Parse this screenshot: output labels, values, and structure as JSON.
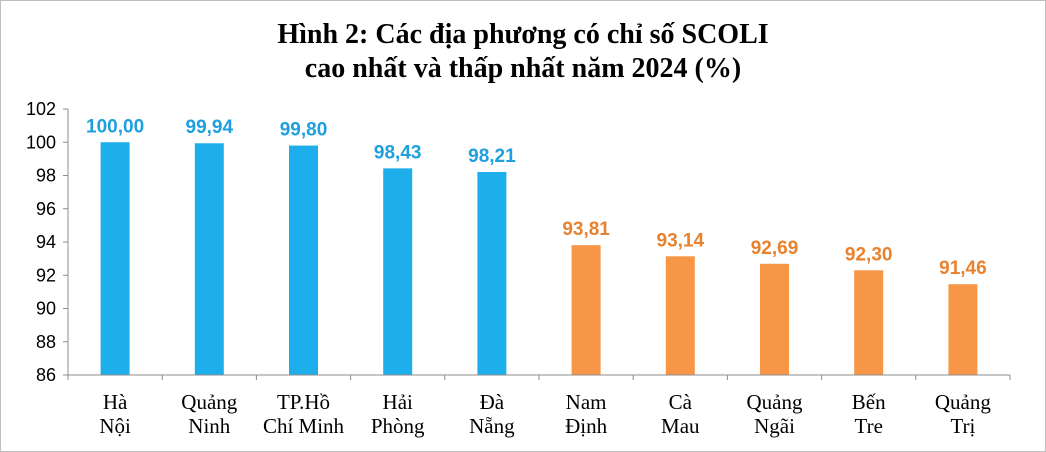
{
  "chart_data": {
    "type": "bar",
    "title_line1": "Hình 2: Các địa phương có chỉ số SCOLI",
    "title_line2": "cao nhất và thấp nhất năm 2024 (%)",
    "xlabel": "",
    "ylabel": "",
    "ylim": [
      86,
      102
    ],
    "yticks": [
      "86",
      "88",
      "90",
      "92",
      "94",
      "96",
      "98",
      "100",
      "102"
    ],
    "grid": false,
    "legend": "none",
    "categories": [
      [
        "Hà",
        "Nội"
      ],
      [
        "Quảng",
        "Ninh"
      ],
      [
        "TP.Hồ",
        "Chí Minh"
      ],
      [
        "Hải",
        "Phòng"
      ],
      [
        "Đà",
        "Nẵng"
      ],
      [
        "Nam",
        "Định"
      ],
      [
        "Cà",
        "Mau"
      ],
      [
        "Quảng",
        "Ngãi"
      ],
      [
        "Bến",
        "Tre"
      ],
      [
        "Quảng",
        "Trị"
      ]
    ],
    "values": [
      100.0,
      99.94,
      99.8,
      98.43,
      98.21,
      93.81,
      93.14,
      92.69,
      92.3,
      91.46
    ],
    "value_labels": [
      "100,00",
      "99,94",
      "99,80",
      "98,43",
      "98,21",
      "93,81",
      "93,14",
      "92,69",
      "92,30",
      "91,46"
    ],
    "groups": [
      "highest",
      "highest",
      "highest",
      "highest",
      "highest",
      "lowest",
      "lowest",
      "lowest",
      "lowest",
      "lowest"
    ],
    "colors": {
      "highest": "#1EAEEB",
      "lowest": "#F79646",
      "highest_label": "#1E9FDE",
      "lowest_label": "#E9822E",
      "axis": "#8c8c8c"
    }
  }
}
